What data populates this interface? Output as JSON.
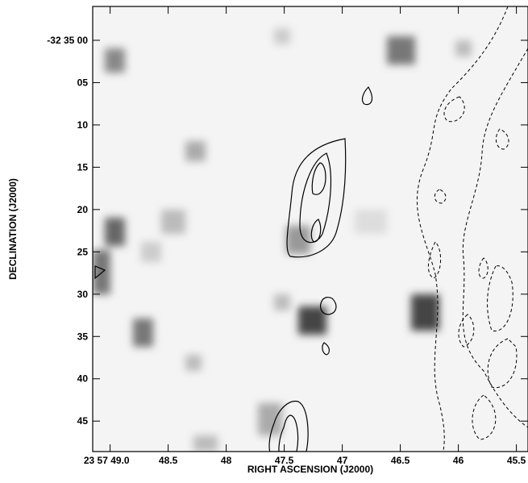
{
  "chart_data": {
    "type": "image",
    "xlabel": "RIGHT ASCENSION (J2000)",
    "ylabel": "DECLINATION (J2000)",
    "xlim": [
      49.15,
      45.4
    ],
    "ylim": [
      -4,
      48.6
    ],
    "xticks": [
      {
        "value": 49.0,
        "label": "23 57 49.0"
      },
      48.5,
      48.0,
      47.5,
      47.0,
      46.5,
      46.0,
      45.5
    ],
    "yticks": [
      {
        "value": 0,
        "label": "-32 35 00"
      },
      {
        "value": 5,
        "label": "05"
      },
      10,
      15,
      20,
      25,
      30,
      35,
      40,
      45
    ]
  }
}
